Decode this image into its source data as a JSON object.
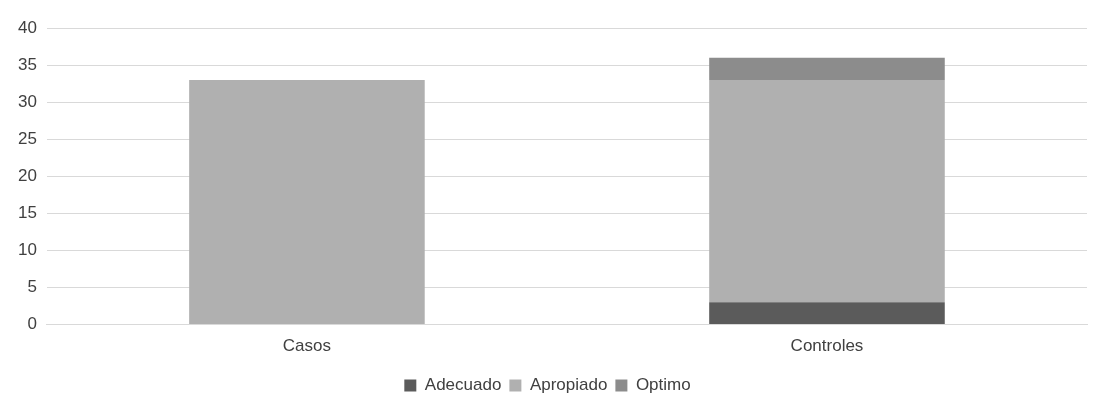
{
  "chart_data": {
    "type": "bar",
    "stacked": true,
    "categories": [
      "Casos",
      "Controles"
    ],
    "series": [
      {
        "name": "Adecuado",
        "color": "#5b5b5b",
        "values": [
          0,
          3
        ]
      },
      {
        "name": "Apropiado",
        "color": "#b0b0b0",
        "values": [
          33,
          30
        ]
      },
      {
        "name": "Optimo",
        "color": "#8c8c8c",
        "values": [
          0,
          3
        ]
      }
    ],
    "ylim": [
      0,
      40
    ],
    "yticks": [
      0,
      5,
      10,
      15,
      20,
      25,
      30,
      35,
      40
    ],
    "grid": "y",
    "legend": "bottom"
  }
}
